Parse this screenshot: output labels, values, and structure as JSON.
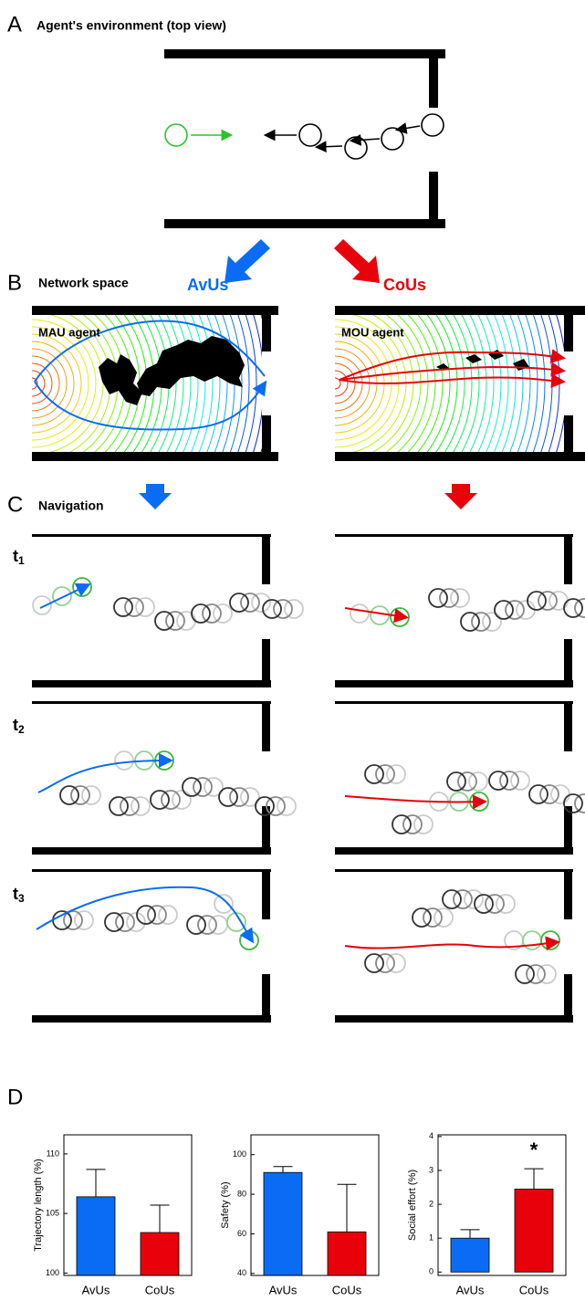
{
  "panel_a": {
    "letter": "A",
    "title": "Agent's environment (top view)"
  },
  "panel_b": {
    "letter": "B",
    "title": "Network space",
    "left_label": "AvUs",
    "right_label": "CoUs",
    "left_agent": "MAU agent",
    "right_agent": "MOU agent"
  },
  "panel_c": {
    "letter": "C",
    "title": "Navigation",
    "steps": [
      {
        "base": "t",
        "sub": "1"
      },
      {
        "base": "t",
        "sub": "2"
      },
      {
        "base": "t",
        "sub": "3"
      }
    ]
  },
  "panel_d": {
    "letter": "D"
  },
  "chart_data": [
    {
      "type": "bar",
      "ylabel": "Trajectory length (%)",
      "categories": [
        "AvUs",
        "CoUs"
      ],
      "values": [
        106.4,
        103.4
      ],
      "errors": [
        2.3,
        2.3
      ],
      "colors": [
        "#0a6cf5",
        "#e8000b"
      ],
      "ylim": [
        99.8,
        111.6
      ],
      "yticks": [
        100,
        105,
        110
      ]
    },
    {
      "type": "bar",
      "ylabel": "Safety (%)",
      "categories": [
        "AvUs",
        "CoUs"
      ],
      "values": [
        91,
        61
      ],
      "errors": [
        3,
        24
      ],
      "colors": [
        "#0a6cf5",
        "#e8000b"
      ],
      "ylim": [
        39,
        110
      ],
      "yticks": [
        40,
        60,
        80,
        100
      ]
    },
    {
      "type": "bar",
      "ylabel": "Social effort (%)",
      "categories": [
        "AvUs",
        "CoUs"
      ],
      "values": [
        1.0,
        2.45
      ],
      "errors": [
        0.25,
        0.6
      ],
      "colors": [
        "#0a6cf5",
        "#e8000b"
      ],
      "ylim": [
        -0.1,
        4.05
      ],
      "yticks": [
        0,
        1,
        2,
        3,
        4
      ],
      "annotation": "*"
    }
  ]
}
